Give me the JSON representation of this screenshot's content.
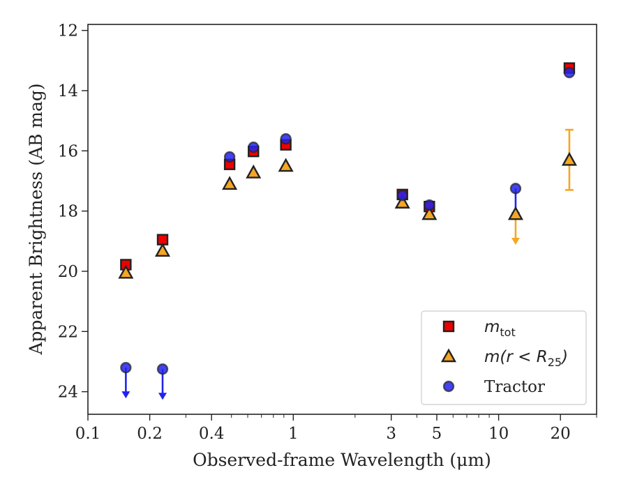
{
  "chart_data": {
    "type": "scatter",
    "title": "",
    "xlabel": "Observed-frame Wavelength (μm)",
    "ylabel": "Apparent Brightness (AB mag)",
    "xscale": "log",
    "xlim": [
      0.1,
      30
    ],
    "ylim": [
      24.75,
      11.8
    ],
    "y_inverted": true,
    "x_ticks": [
      0.1,
      0.2,
      0.4,
      1,
      3,
      5,
      10,
      20
    ],
    "x_tick_labels": [
      "0.1",
      "0.2",
      "0.4",
      "1",
      "3",
      "5",
      "10",
      "20"
    ],
    "y_ticks": [
      12,
      14,
      16,
      18,
      20,
      22,
      24
    ],
    "y_tick_labels": [
      "12",
      "14",
      "16",
      "18",
      "20",
      "22",
      "24"
    ],
    "grid": false,
    "legend_position": "lower-right",
    "colors": {
      "mtot": "#ee0000",
      "aperture": "#f5a623",
      "tractor": "#2222ee",
      "edge": "#222222"
    },
    "series": [
      {
        "name": "m_tot",
        "marker": "square",
        "points": [
          {
            "x": 0.153,
            "y": 19.78
          },
          {
            "x": 0.231,
            "y": 18.95
          },
          {
            "x": 0.49,
            "y": 16.45
          },
          {
            "x": 0.64,
            "y": 16.02
          },
          {
            "x": 0.92,
            "y": 15.8
          },
          {
            "x": 3.4,
            "y": 17.45
          },
          {
            "x": 4.6,
            "y": 17.85
          },
          {
            "x": 22.1,
            "y": 13.25
          }
        ]
      },
      {
        "name": "m(r < R25)",
        "marker": "triangle",
        "points": [
          {
            "x": 0.153,
            "y": 20.05
          },
          {
            "x": 0.231,
            "y": 19.32
          },
          {
            "x": 0.49,
            "y": 17.1
          },
          {
            "x": 0.64,
            "y": 16.72
          },
          {
            "x": 0.92,
            "y": 16.5
          },
          {
            "x": 3.4,
            "y": 17.72
          },
          {
            "x": 4.6,
            "y": 18.1
          },
          {
            "x": 12.1,
            "y": 18.1,
            "upper_limit": true
          },
          {
            "x": 22.1,
            "y": 16.3,
            "yerr": 1.0
          }
        ]
      },
      {
        "name": "Tractor",
        "marker": "circle",
        "points": [
          {
            "x": 0.153,
            "y": 23.2,
            "upper_limit": true
          },
          {
            "x": 0.231,
            "y": 23.25,
            "upper_limit": true
          },
          {
            "x": 0.49,
            "y": 16.2
          },
          {
            "x": 0.64,
            "y": 15.88
          },
          {
            "x": 0.92,
            "y": 15.6
          },
          {
            "x": 3.4,
            "y": 17.48
          },
          {
            "x": 4.6,
            "y": 17.8
          },
          {
            "x": 12.1,
            "y": 17.25,
            "upper_limit": true
          },
          {
            "x": 22.1,
            "y": 13.4
          }
        ]
      }
    ],
    "legend": {
      "entries": [
        {
          "series": "m_tot",
          "main": "m",
          "sub": "tot"
        },
        {
          "series": "m(r < R25)",
          "main": "m(r < R",
          "sub": "25",
          "close": ")"
        },
        {
          "series": "Tractor",
          "main": "Tractor"
        }
      ]
    }
  }
}
